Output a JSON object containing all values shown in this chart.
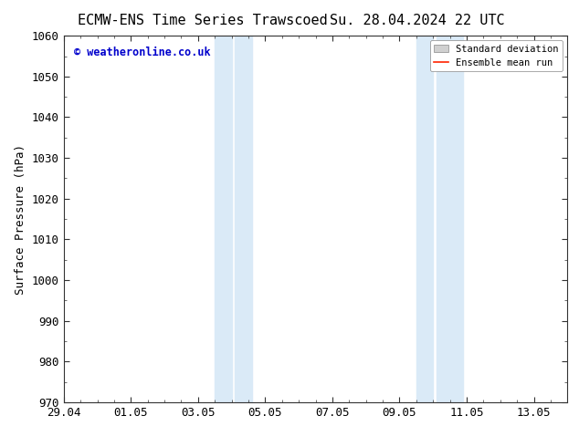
{
  "title_left": "ECMW-ENS Time Series Trawscoed",
  "title_right": "Su. 28.04.2024 22 UTC",
  "ylabel": "Surface Pressure (hPa)",
  "ylim": [
    970,
    1060
  ],
  "yticks": [
    970,
    980,
    990,
    1000,
    1010,
    1020,
    1030,
    1040,
    1050,
    1060
  ],
  "xtick_labels": [
    "29.04",
    "01.05",
    "03.05",
    "05.05",
    "07.05",
    "09.05",
    "11.05",
    "13.05"
  ],
  "xtick_positions": [
    0,
    2,
    4,
    6,
    8,
    10,
    12,
    14
  ],
  "x_min": 0,
  "x_max": 15,
  "shaded_bands": [
    {
      "x_start": 4.5,
      "x_end": 5.0
    },
    {
      "x_start": 5.1,
      "x_end": 5.6
    },
    {
      "x_start": 10.5,
      "x_end": 11.0
    },
    {
      "x_start": 11.1,
      "x_end": 11.9
    }
  ],
  "shade_color": "#daeaf7",
  "watermark_text": "© weatheronline.co.uk",
  "watermark_color": "#0000cc",
  "legend_std_dev_color": "#d0d0d0",
  "legend_mean_color": "#ff2200",
  "background_color": "#ffffff",
  "minor_tick_color": "#333333",
  "spine_color": "#333333",
  "title_fontsize": 11,
  "axis_fontsize": 9,
  "tick_fontsize": 9
}
